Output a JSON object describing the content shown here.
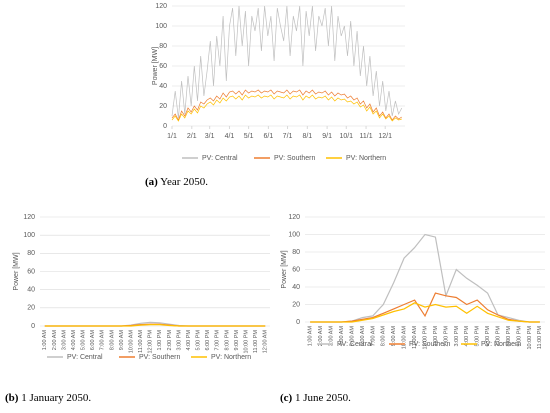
{
  "chart_data": [
    {
      "type": "line",
      "y_label": "Power [MW]",
      "caption_label": "(a)",
      "caption": "Year 2050.",
      "x": [
        1,
        6,
        11,
        16,
        21,
        26,
        31,
        36,
        41,
        46,
        51,
        56,
        61,
        66,
        71,
        76,
        81,
        86,
        91,
        96,
        101,
        106,
        111,
        116,
        121,
        126,
        131,
        136,
        141,
        146,
        151,
        156,
        161,
        166,
        171,
        176,
        181,
        186,
        191,
        196,
        201,
        206,
        211,
        216,
        221,
        226,
        231,
        236,
        241,
        246,
        251,
        256,
        261,
        266,
        271,
        276,
        281,
        286,
        291,
        296,
        301,
        306,
        311,
        316,
        321,
        326,
        331,
        336,
        341,
        346,
        351,
        356,
        361
      ],
      "xlim": [
        1,
        366
      ],
      "xticks": [
        {
          "value": 1,
          "label": "1/1"
        },
        {
          "value": 32,
          "label": "2/1"
        },
        {
          "value": 60,
          "label": "3/1"
        },
        {
          "value": 91,
          "label": "4/1"
        },
        {
          "value": 121,
          "label": "5/1"
        },
        {
          "value": 152,
          "label": "6/1"
        },
        {
          "value": 182,
          "label": "7/1"
        },
        {
          "value": 213,
          "label": "8/1"
        },
        {
          "value": 244,
          "label": "9/1"
        },
        {
          "value": 274,
          "label": "10/1"
        },
        {
          "value": 305,
          "label": "11/1"
        },
        {
          "value": 335,
          "label": "12/1"
        }
      ],
      "ylim": [
        0,
        120
      ],
      "yticks": [
        0,
        20,
        40,
        60,
        80,
        100,
        120
      ],
      "grid": true,
      "series": [
        {
          "name": "PV: Central",
          "color": "#bfbfbf",
          "values": [
            10,
            35,
            8,
            45,
            12,
            50,
            20,
            60,
            25,
            70,
            30,
            55,
            85,
            40,
            90,
            60,
            110,
            45,
            100,
            118,
            70,
            120,
            80,
            115,
            60,
            110,
            95,
            118,
            75,
            120,
            90,
            110,
            65,
            118,
            100,
            85,
            120,
            70,
            110,
            95,
            120,
            60,
            115,
            90,
            120,
            75,
            110,
            100,
            118,
            80,
            120,
            65,
            110,
            90,
            100,
            70,
            105,
            60,
            95,
            50,
            80,
            40,
            70,
            30,
            55,
            20,
            45,
            15,
            35,
            10,
            25,
            12,
            18
          ]
        },
        {
          "name": "PV: Southern",
          "color": "#ed7d31",
          "values": [
            8,
            12,
            6,
            15,
            10,
            18,
            14,
            20,
            16,
            24,
            22,
            26,
            28,
            25,
            30,
            27,
            33,
            29,
            34,
            35,
            32,
            35,
            31,
            36,
            33,
            35,
            34,
            36,
            33,
            35,
            34,
            36,
            32,
            35,
            34,
            33,
            36,
            32,
            35,
            34,
            36,
            31,
            35,
            33,
            36,
            32,
            34,
            33,
            35,
            31,
            34,
            30,
            33,
            31,
            32,
            28,
            30,
            26,
            28,
            22,
            25,
            18,
            22,
            14,
            18,
            10,
            14,
            8,
            12,
            6,
            10,
            7,
            9
          ]
        },
        {
          "name": "PV: Northern",
          "color": "#ffc000",
          "values": [
            6,
            10,
            5,
            12,
            8,
            15,
            12,
            17,
            13,
            20,
            18,
            22,
            24,
            21,
            26,
            23,
            28,
            25,
            29,
            30,
            27,
            30,
            26,
            31,
            28,
            30,
            29,
            31,
            28,
            30,
            29,
            31,
            27,
            30,
            29,
            28,
            31,
            27,
            30,
            29,
            31,
            26,
            30,
            28,
            31,
            27,
            29,
            28,
            30,
            26,
            29,
            25,
            28,
            26,
            27,
            24,
            25,
            22,
            24,
            19,
            21,
            15,
            19,
            12,
            15,
            8,
            12,
            7,
            10,
            5,
            8,
            6,
            7
          ]
        }
      ]
    },
    {
      "type": "line",
      "y_label": "Power [MW]",
      "caption_label": "(b)",
      "caption": "1 January 2050.",
      "categories": [
        "1:00 AM",
        "2:00 AM",
        "3:00 AM",
        "4:00 AM",
        "5:00 AM",
        "6:00 AM",
        "7:00 AM",
        "8:00 AM",
        "9:00 AM",
        "10:00 AM",
        "11:00 AM",
        "12:00 PM",
        "1:00 PM",
        "2:00 PM",
        "3:00 PM",
        "4:00 PM",
        "5:00 PM",
        "6:00 PM",
        "7:00 PM",
        "8:00 PM",
        "9:00 PM",
        "10:00 PM",
        "11:00 PM",
        "12:00 AM"
      ],
      "ylim": [
        0,
        120
      ],
      "yticks": [
        0,
        20,
        40,
        60,
        80,
        100,
        120
      ],
      "grid": true,
      "series": [
        {
          "name": "PV: Central",
          "color": "#bfbfbf",
          "values": [
            0,
            0,
            0,
            0,
            0,
            0,
            0,
            0,
            0,
            1,
            3,
            4,
            3.5,
            2,
            0.5,
            0,
            0,
            0,
            0,
            0,
            0,
            0,
            0,
            0
          ]
        },
        {
          "name": "PV: Southern",
          "color": "#ed7d31",
          "values": [
            0,
            0,
            0,
            0,
            0,
            0,
            0,
            0,
            0,
            0.5,
            1.5,
            2,
            2,
            1,
            0,
            0,
            0,
            0,
            0,
            0,
            0,
            0,
            0,
            0
          ]
        },
        {
          "name": "PV: Northern",
          "color": "#ffc000",
          "values": [
            0,
            0,
            0,
            0,
            0,
            0,
            0,
            0,
            0,
            0,
            1,
            1.5,
            1.5,
            0.5,
            0,
            0,
            0,
            0,
            0,
            0,
            0,
            0,
            0,
            0
          ]
        }
      ]
    },
    {
      "type": "line",
      "y_label": "Power [MW]",
      "caption_label": "(c)",
      "caption": "1 June 2050.",
      "categories": [
        "1:00 AM",
        "2:00 AM",
        "3:00 AM",
        "4:00 AM",
        "5:00 AM",
        "6:00 AM",
        "7:00 AM",
        "8:00 AM",
        "9:00 AM",
        "10:00 AM",
        "11:00 AM",
        "12:00 PM",
        "1:00 PM",
        "2:00 PM",
        "3:00 PM",
        "4:00 PM",
        "5:00 PM",
        "6:00 PM",
        "7:00 PM",
        "8:00 PM",
        "9:00 PM",
        "10:00 PM",
        "11:00 PM"
      ],
      "ylim": [
        0,
        120
      ],
      "yticks": [
        0,
        20,
        40,
        60,
        80,
        100,
        120
      ],
      "grid": true,
      "series": [
        {
          "name": "PV: Central",
          "color": "#bfbfbf",
          "values": [
            0,
            0,
            0,
            0,
            1,
            5,
            7,
            20,
            45,
            73,
            85,
            100,
            97,
            30,
            60,
            50,
            42,
            33,
            8,
            5,
            2,
            0,
            0
          ]
        },
        {
          "name": "PV: Southern",
          "color": "#ed7d31",
          "values": [
            0,
            0,
            0,
            0,
            1,
            3,
            5,
            10,
            15,
            20,
            25,
            7,
            33,
            30,
            28,
            20,
            25,
            14,
            8,
            3,
            1,
            0,
            0
          ]
        },
        {
          "name": "PV: Northern",
          "color": "#ffc000",
          "values": [
            0,
            0,
            0,
            0,
            0,
            2,
            4,
            8,
            12,
            15,
            22,
            17,
            20,
            17,
            18,
            10,
            18,
            10,
            6,
            2,
            1,
            0,
            0
          ]
        }
      ]
    }
  ]
}
